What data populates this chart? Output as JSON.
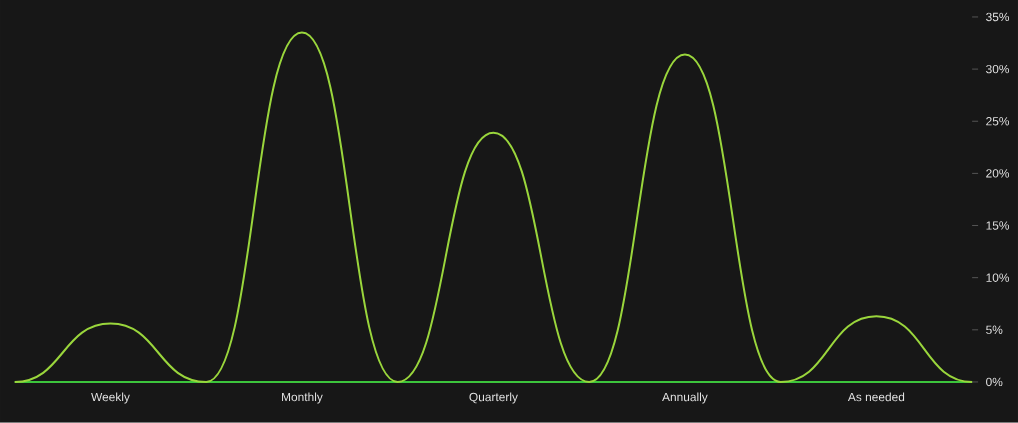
{
  "chart_data": {
    "type": "line",
    "categories": [
      null,
      "Weekly",
      null,
      "Monthly",
      null,
      "Quarterly",
      null,
      "Annually",
      null,
      "As needed",
      null
    ],
    "series": [
      {
        "color": "#9ad63c",
        "values": [
          0,
          5.6,
          0,
          33.5,
          0,
          23.9,
          0,
          31.4,
          0,
          6.3,
          0
        ]
      }
    ],
    "ylim": [
      0,
      35
    ],
    "yticks": [
      {
        "value": 0,
        "label": "0%"
      },
      {
        "value": 5,
        "label": "5%"
      },
      {
        "value": 10,
        "label": "10%"
      },
      {
        "value": 15,
        "label": "15%"
      },
      {
        "value": 20,
        "label": "20%"
      },
      {
        "value": 25,
        "label": "25%"
      },
      {
        "value": 30,
        "label": "30%"
      },
      {
        "value": 35,
        "label": "35%"
      }
    ]
  }
}
